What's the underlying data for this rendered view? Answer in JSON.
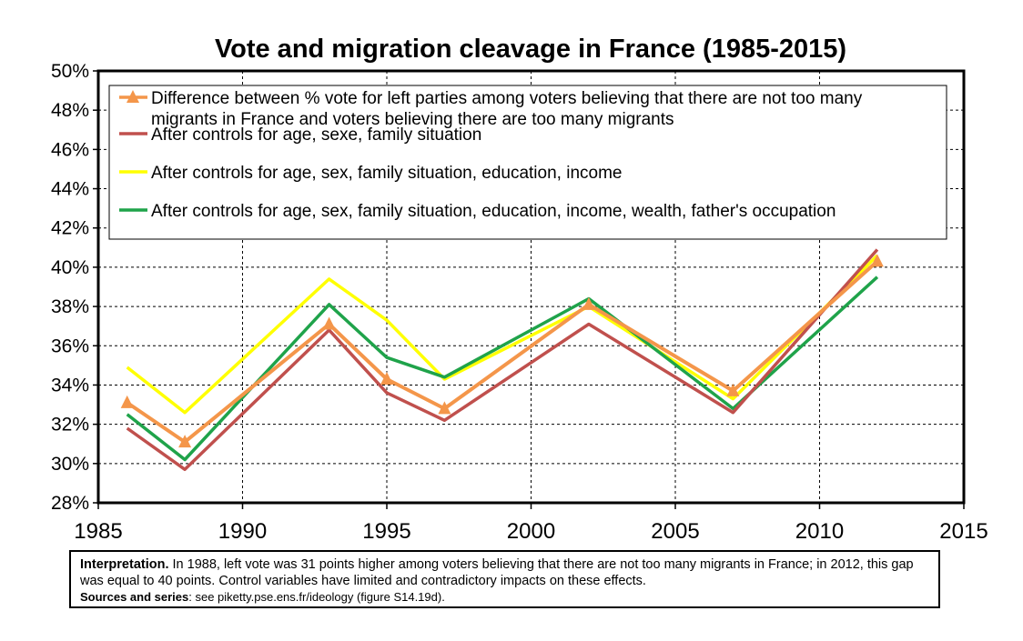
{
  "chart_data": {
    "type": "line",
    "title": "Vote and migration cleavage in France (1985-2015)",
    "xlabel": "",
    "ylabel": "",
    "xlim": [
      1985,
      2015
    ],
    "ylim": [
      28,
      50
    ],
    "x_ticks": [
      "1985",
      "1990",
      "1995",
      "2000",
      "2005",
      "2010",
      "2015"
    ],
    "y_ticks": [
      "28%",
      "30%",
      "32%",
      "34%",
      "36%",
      "38%",
      "40%",
      "42%",
      "44%",
      "46%",
      "48%",
      "50%"
    ],
    "grid": true,
    "legend_position": "top-left",
    "series": [
      {
        "name": "Difference between % vote for left parties among voters believing that there are not too many migrants in France and voters believing there are too many migrants",
        "legend_lines": [
          "Difference between % vote for left parties among voters believing that there are not too many",
          "migrants in France and voters believing there are too many migrants"
        ],
        "color": "#f4964a",
        "marker": "triangle",
        "x": [
          1986,
          1988,
          1993,
          1995,
          1997,
          2002,
          2007,
          2012
        ],
        "values": [
          33.1,
          31.1,
          37.1,
          34.3,
          32.8,
          38.1,
          33.7,
          40.3
        ]
      },
      {
        "name": "After controls for age, sexe, family situation",
        "legend_lines": [
          "After controls for age, sexe, family situation"
        ],
        "color": "#c0504d",
        "marker": "none",
        "x": [
          1986,
          1988,
          1993,
          1995,
          1997,
          2002,
          2007,
          2012
        ],
        "values": [
          31.8,
          29.7,
          36.8,
          33.6,
          32.2,
          37.1,
          32.6,
          40.9
        ]
      },
      {
        "name": "After controls for age, sex, family situation, education, income",
        "legend_lines": [
          "After controls for age, sex, family situation, education, income"
        ],
        "color": "#ffff00",
        "marker": "none",
        "x": [
          1986,
          1988,
          1993,
          1995,
          1997,
          2002,
          2007,
          2012
        ],
        "values": [
          34.9,
          32.6,
          39.4,
          37.3,
          34.3,
          38.0,
          33.3,
          40.6
        ]
      },
      {
        "name": "After controls for age, sex, family situation, education, income, wealth, father's occupation",
        "legend_lines": [
          "After controls for age, sex, family situation, education, income, wealth, father's occupation"
        ],
        "color": "#1fa34a",
        "marker": "none",
        "x": [
          1986,
          1988,
          1993,
          1995,
          1997,
          2002,
          2007,
          2012
        ],
        "values": [
          32.5,
          30.2,
          38.1,
          35.4,
          34.4,
          38.4,
          32.8,
          39.5
        ]
      }
    ]
  },
  "note": {
    "label": "Interpretation.",
    "text": " In 1988, left vote was 31 points higher among voters believing that there are not too many migrants in France; in 2012, this gap was equal to 40 points. Control variables have limited and contradictory impacts on these effects.",
    "sources_label": "Sources and series",
    "sources_text": ": see piketty.pse.ens.fr/ideology (figure S14.19d)."
  }
}
